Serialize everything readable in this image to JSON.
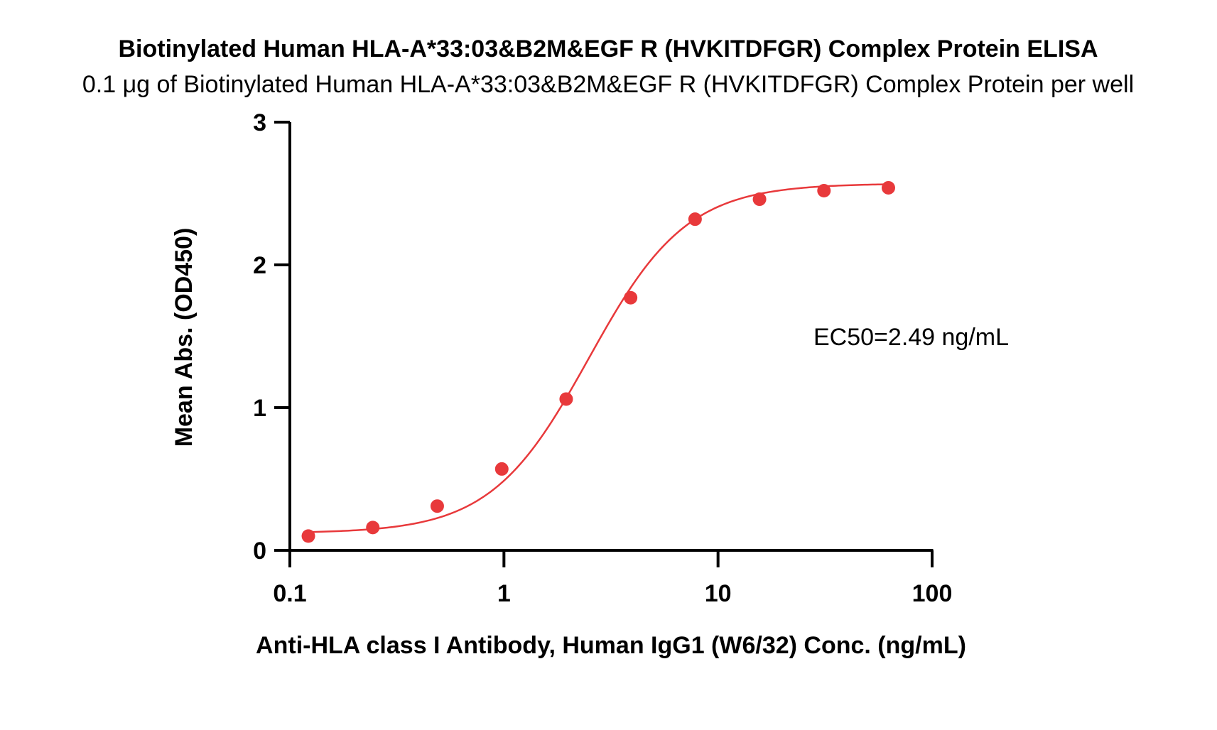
{
  "chart_data": {
    "type": "scatter",
    "title": "Biotinylated Human HLA-A*33:03&B2M&EGF R (HVKITDFGR) Complex Protein ELISA",
    "subtitle": "0.1 μg of Biotinylated Human HLA-A*33:03&B2M&EGF R (HVKITDFGR) Complex Protein per well",
    "xlabel": "Anti-HLA class I Antibody, Human IgG1 (W6/32) Conc. (ng/mL)",
    "ylabel": "Mean Abs. (OD450)",
    "xscale": "log",
    "xlim": [
      0.1,
      100
    ],
    "ylim": [
      0,
      3
    ],
    "xticks": [
      0.1,
      1,
      10,
      100
    ],
    "xtick_labels": [
      "0.1",
      "1",
      "10",
      "100"
    ],
    "yticks": [
      0,
      1,
      2,
      3
    ],
    "ytick_labels": [
      "0",
      "1",
      "2",
      "3"
    ],
    "grid": false,
    "annotation": "EC50=2.49 ng/mL",
    "color": "#e8393b",
    "series": [
      {
        "x": [
          0.122,
          0.244,
          0.488,
          0.977,
          1.953,
          3.906,
          7.813,
          15.625,
          31.25,
          62.5
        ],
        "y": [
          0.1,
          0.16,
          0.31,
          0.57,
          1.06,
          1.77,
          2.32,
          2.46,
          2.52,
          2.54
        ]
      }
    ],
    "fit": {
      "bottom": 0.12,
      "top": 2.57,
      "ec50": 2.49,
      "hill": 1.9
    }
  }
}
